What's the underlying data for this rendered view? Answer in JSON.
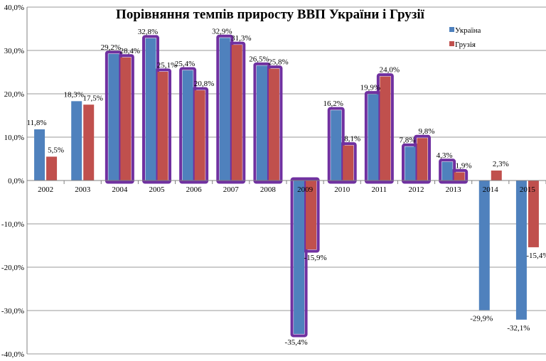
{
  "chart_data": {
    "type": "bar",
    "title": "Порівняння темпів  приросту ВВП України і Грузії",
    "xlabel": "",
    "ylabel": "",
    "ylim": [
      -40,
      40
    ],
    "yticks": [
      "-40,0%",
      "-30,0%",
      "-20,0%",
      "-10,0%",
      "0,0%",
      "10,0%",
      "20,0%",
      "30,0%",
      "40,0%"
    ],
    "grid": true,
    "legend_position": "top-right",
    "categories": [
      "2002",
      "2003",
      "2004",
      "2005",
      "2006",
      "2007",
      "2008",
      "2009",
      "2010",
      "2011",
      "2012",
      "2013",
      "2014",
      "2015"
    ],
    "series": [
      {
        "name": "Україна",
        "color": "#4f81bd",
        "values": [
          11.8,
          18.3,
          29.2,
          32.8,
          25.4,
          32.9,
          26.5,
          -35.4,
          16.2,
          19.9,
          7.8,
          4.3,
          -29.9,
          -32.1
        ],
        "labels": [
          "11,8%",
          "18,3%",
          "29,2%",
          "32,8%",
          "25,4%",
          "32,9%",
          "26,5%",
          "-35,4%",
          "16,2%",
          "19,9%",
          "7,8%",
          "4,3%",
          "-29,9%",
          "-32,1%"
        ]
      },
      {
        "name": "Грузія",
        "color": "#c0504d",
        "values": [
          5.5,
          17.5,
          28.4,
          25.1,
          20.8,
          31.3,
          25.8,
          -15.9,
          8.1,
          24.0,
          9.8,
          1.9,
          2.3,
          -15.4
        ],
        "labels": [
          "5,5%",
          "17,5%",
          "28,4%",
          "25,1%",
          "20,8%",
          "31,3%",
          "25,8%",
          "-15,9%",
          "8,1%",
          "24,0%",
          "9,8%",
          "1,9%",
          "2,3%",
          "-15,4%"
        ]
      }
    ],
    "highlight_color": "#7030a0",
    "highlighted_categories": [
      "2004",
      "2005",
      "2006",
      "2007",
      "2008",
      "2009",
      "2010",
      "2011",
      "2012",
      "2013"
    ]
  }
}
